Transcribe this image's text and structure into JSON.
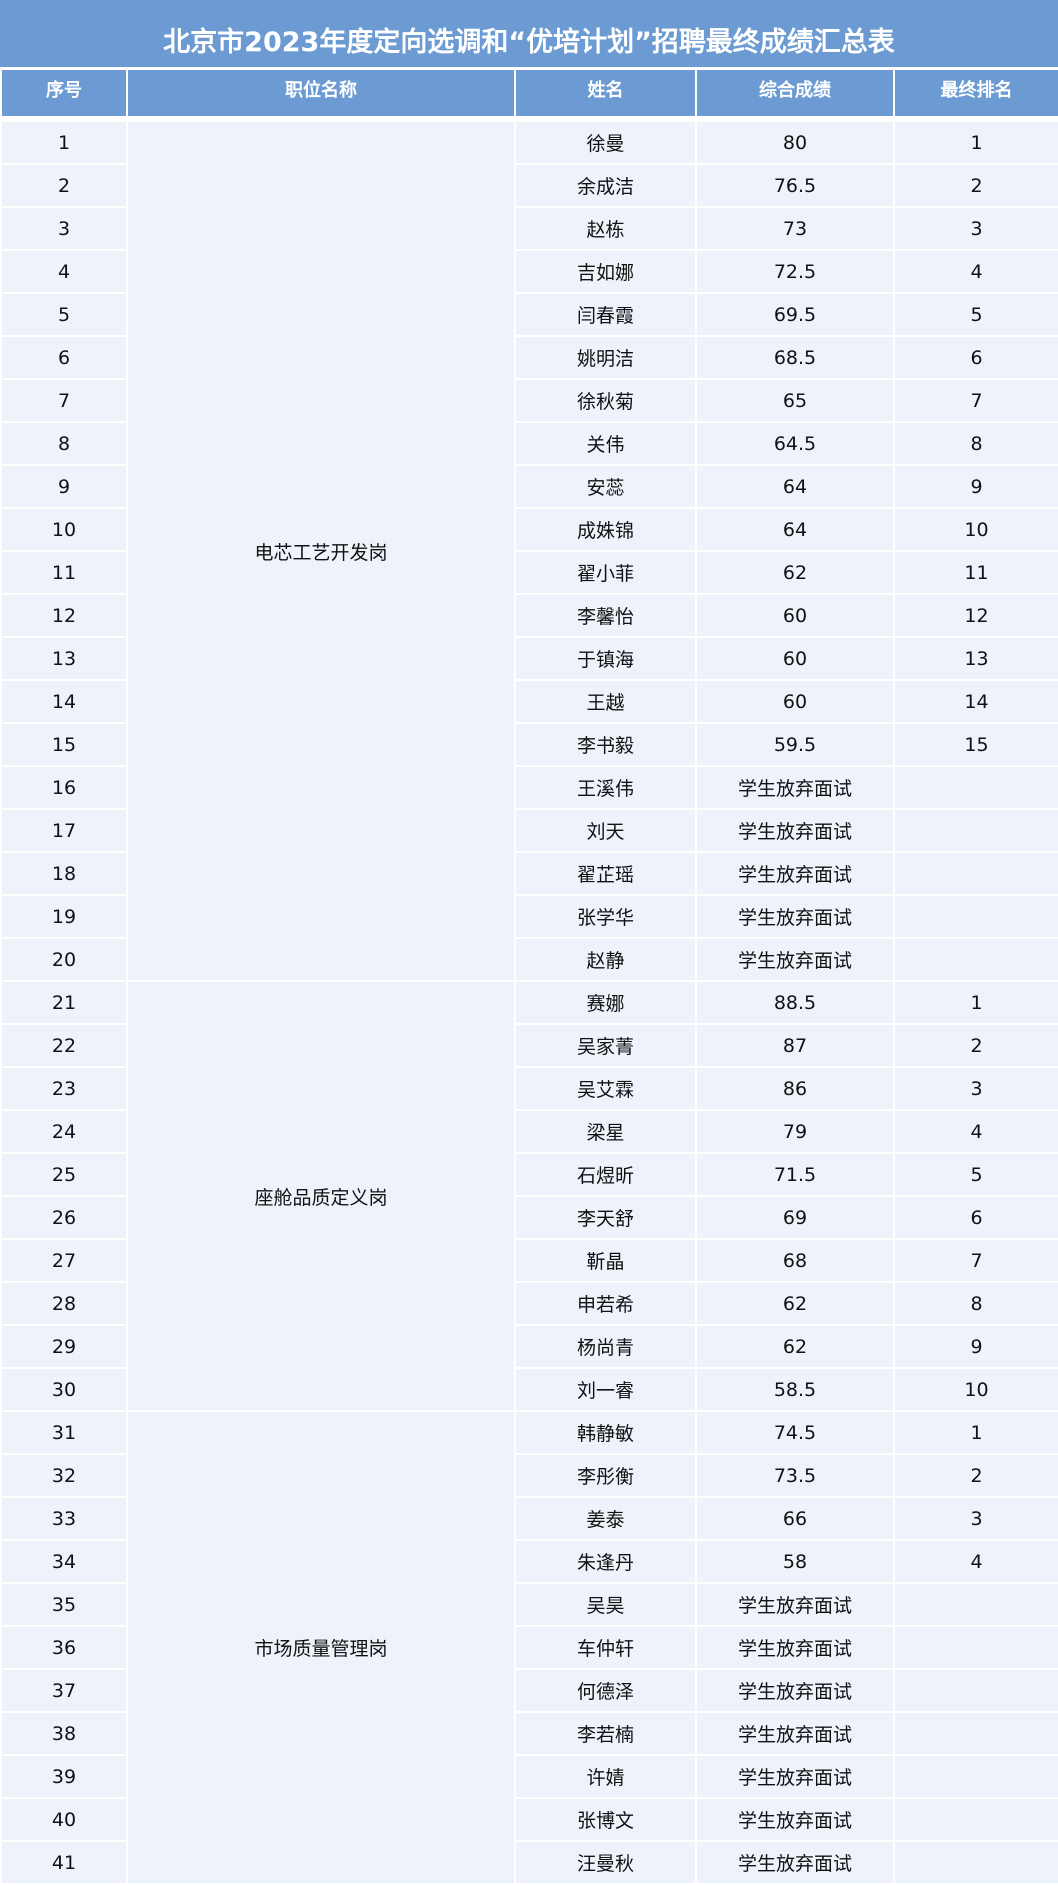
{
  "title": "北京市2023年度定向选调和“优培计划”招聘最终成绩汇总表",
  "headers": [
    "序号",
    "职位名称",
    "姓名",
    "综合成绩",
    "最终排名"
  ],
  "theme": {
    "header_bg": "#6b9bd2",
    "cell_bg": "#eef3fb"
  },
  "groups": [
    {
      "position": "电芯工艺开发岗",
      "rows": [
        {
          "no": "1",
          "name": "徐曼",
          "score": "80",
          "rank": "1"
        },
        {
          "no": "2",
          "name": "余成洁",
          "score": "76.5",
          "rank": "2"
        },
        {
          "no": "3",
          "name": "赵栋",
          "score": "73",
          "rank": "3"
        },
        {
          "no": "4",
          "name": "吉如娜",
          "score": "72.5",
          "rank": "4"
        },
        {
          "no": "5",
          "name": "闫春霞",
          "score": "69.5",
          "rank": "5"
        },
        {
          "no": "6",
          "name": "姚明洁",
          "score": "68.5",
          "rank": "6"
        },
        {
          "no": "7",
          "name": "徐秋菊",
          "score": "65",
          "rank": "7"
        },
        {
          "no": "8",
          "name": "关伟",
          "score": "64.5",
          "rank": "8"
        },
        {
          "no": "9",
          "name": "安蕊",
          "score": "64",
          "rank": "9"
        },
        {
          "no": "10",
          "name": "成姝锦",
          "score": "64",
          "rank": "10"
        },
        {
          "no": "11",
          "name": "翟小菲",
          "score": "62",
          "rank": "11"
        },
        {
          "no": "12",
          "name": "李馨怡",
          "score": "60",
          "rank": "12"
        },
        {
          "no": "13",
          "name": "于镇海",
          "score": "60",
          "rank": "13"
        },
        {
          "no": "14",
          "name": "王越",
          "score": "60",
          "rank": "14"
        },
        {
          "no": "15",
          "name": "李书毅",
          "score": "59.5",
          "rank": "15"
        },
        {
          "no": "16",
          "name": "王溪伟",
          "score": "学生放弃面试",
          "rank": ""
        },
        {
          "no": "17",
          "name": "刘天",
          "score": "学生放弃面试",
          "rank": ""
        },
        {
          "no": "18",
          "name": "翟芷瑶",
          "score": "学生放弃面试",
          "rank": ""
        },
        {
          "no": "19",
          "name": "张学华",
          "score": "学生放弃面试",
          "rank": ""
        },
        {
          "no": "20",
          "name": "赵静",
          "score": "学生放弃面试",
          "rank": ""
        }
      ]
    },
    {
      "position": "座舱品质定义岗",
      "rows": [
        {
          "no": "21",
          "name": "赛娜",
          "score": "88.5",
          "rank": "1"
        },
        {
          "no": "22",
          "name": "吴家菁",
          "score": "87",
          "rank": "2"
        },
        {
          "no": "23",
          "name": "吴艾霖",
          "score": "86",
          "rank": "3"
        },
        {
          "no": "24",
          "name": "梁星",
          "score": "79",
          "rank": "4"
        },
        {
          "no": "25",
          "name": "石煜昕",
          "score": "71.5",
          "rank": "5"
        },
        {
          "no": "26",
          "name": "李天舒",
          "score": "69",
          "rank": "6"
        },
        {
          "no": "27",
          "name": "靳晶",
          "score": "68",
          "rank": "7"
        },
        {
          "no": "28",
          "name": "申若希",
          "score": "62",
          "rank": "8"
        },
        {
          "no": "29",
          "name": "杨尚青",
          "score": "62",
          "rank": "9"
        },
        {
          "no": "30",
          "name": "刘一睿",
          "score": "58.5",
          "rank": "10"
        }
      ]
    },
    {
      "position": "市场质量管理岗",
      "rows": [
        {
          "no": "31",
          "name": "韩静敏",
          "score": "74.5",
          "rank": "1"
        },
        {
          "no": "32",
          "name": "李彤衡",
          "score": "73.5",
          "rank": "2"
        },
        {
          "no": "33",
          "name": "姜泰",
          "score": "66",
          "rank": "3"
        },
        {
          "no": "34",
          "name": "朱逢丹",
          "score": "58",
          "rank": "4"
        },
        {
          "no": "35",
          "name": "吴昊",
          "score": "学生放弃面试",
          "rank": ""
        },
        {
          "no": "36",
          "name": "车仲轩",
          "score": "学生放弃面试",
          "rank": ""
        },
        {
          "no": "37",
          "name": "何德泽",
          "score": "学生放弃面试",
          "rank": ""
        },
        {
          "no": "38",
          "name": "李若楠",
          "score": "学生放弃面试",
          "rank": ""
        },
        {
          "no": "39",
          "name": "许婧",
          "score": "学生放弃面试",
          "rank": ""
        },
        {
          "no": "40",
          "name": "张博文",
          "score": "学生放弃面试",
          "rank": ""
        },
        {
          "no": "41",
          "name": "汪曼秋",
          "score": "学生放弃面试",
          "rank": ""
        }
      ]
    }
  ]
}
